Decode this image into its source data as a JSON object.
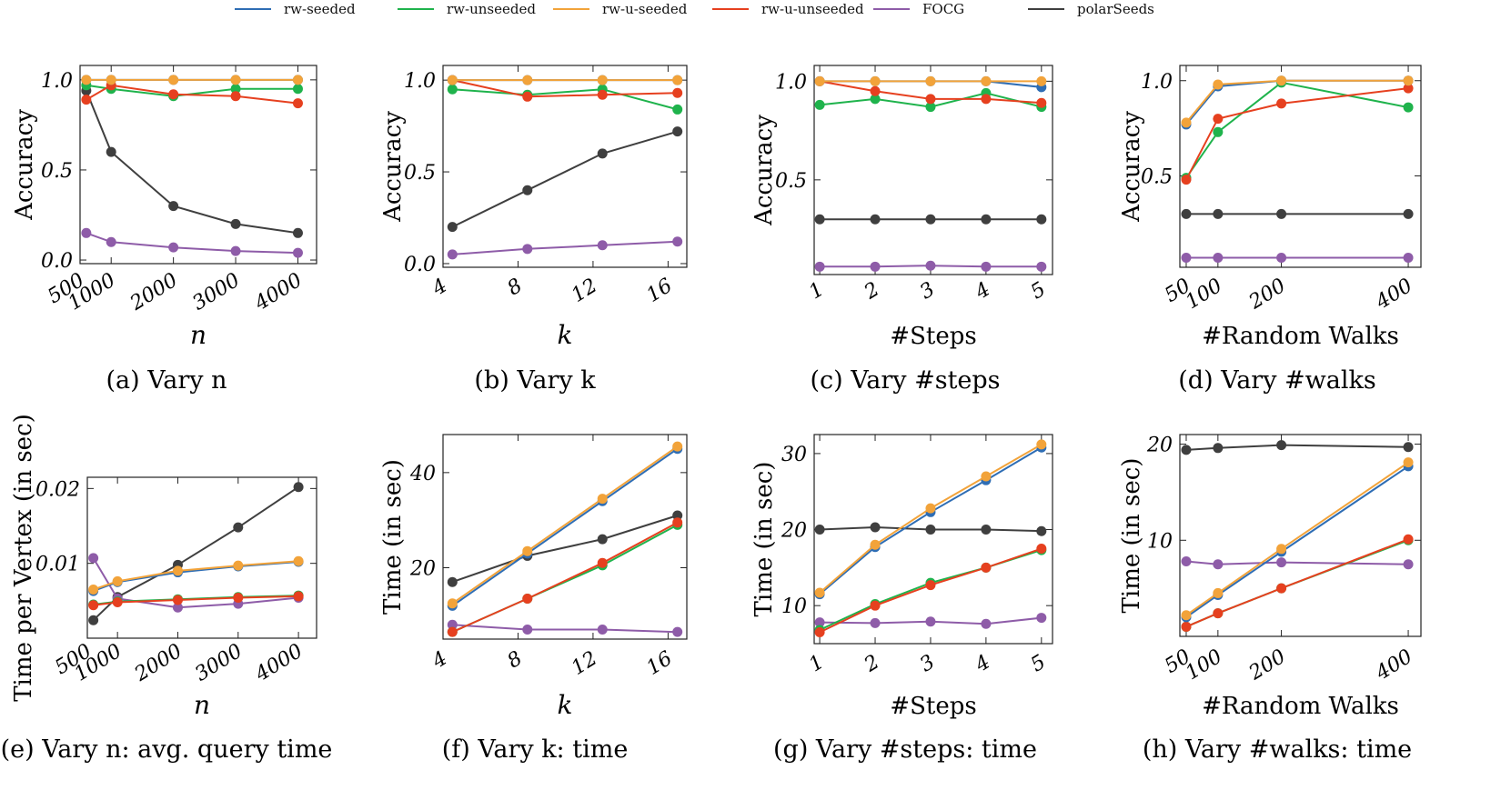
{
  "legend": [
    {
      "name": "rw-seeded",
      "color": "#2e6db4"
    },
    {
      "name": "rw-unseeded",
      "color": "#1fb34c"
    },
    {
      "name": "rw-u-seeded",
      "color": "#f2a33a"
    },
    {
      "name": "rw-u-unseeded",
      "color": "#e6401f"
    },
    {
      "name": "FOCG",
      "color": "#8e5ca8"
    },
    {
      "name": "polarSeeds",
      "color": "#3f3f3f"
    }
  ],
  "chart_data": [
    {
      "id": "a",
      "type": "line",
      "caption": "(a) Vary n",
      "xlabel": "n",
      "ylabel": "Accuracy",
      "xlim": [
        500,
        4300
      ],
      "ylim": [
        -0.02,
        1.08
      ],
      "xticks": [
        500,
        1000,
        2000,
        3000,
        4000
      ],
      "xtick_labels": [
        "500",
        "1000",
        "2000",
        "3000",
        "4000"
      ],
      "yticks": [
        0.0,
        0.5,
        1.0
      ],
      "ytick_labels": [
        "0.0",
        "0.5",
        "1.0"
      ],
      "x": [
        600,
        1000,
        2000,
        3000,
        4000
      ],
      "series": [
        {
          "name": "rw-seeded",
          "values": [
            1.0,
            1.0,
            1.0,
            1.0,
            1.0
          ]
        },
        {
          "name": "rw-unseeded",
          "values": [
            0.97,
            0.95,
            0.91,
            0.95,
            0.95
          ]
        },
        {
          "name": "rw-u-seeded",
          "values": [
            1.0,
            1.0,
            1.0,
            1.0,
            1.0
          ]
        },
        {
          "name": "rw-u-unseeded",
          "values": [
            0.89,
            0.97,
            0.92,
            0.91,
            0.87
          ]
        },
        {
          "name": "FOCG",
          "values": [
            0.15,
            0.1,
            0.07,
            0.05,
            0.04
          ]
        },
        {
          "name": "polarSeeds",
          "values": [
            0.94,
            0.6,
            0.3,
            0.2,
            0.15
          ]
        }
      ]
    },
    {
      "id": "b",
      "type": "line",
      "caption": "(b) Vary k",
      "xlabel": "k",
      "ylabel": "Accuracy",
      "xlim": [
        4,
        17
      ],
      "ylim": [
        -0.02,
        1.08
      ],
      "xticks": [
        4,
        8,
        12,
        16
      ],
      "xtick_labels": [
        "4",
        "8",
        "12",
        "16"
      ],
      "yticks": [
        0.0,
        0.5,
        1.0
      ],
      "ytick_labels": [
        "0.0",
        "0.5",
        "1.0"
      ],
      "x": [
        4.5,
        8.5,
        12.5,
        16.5
      ],
      "series": [
        {
          "name": "rw-seeded",
          "values": [
            1.0,
            1.0,
            1.0,
            1.0
          ]
        },
        {
          "name": "rw-unseeded",
          "values": [
            0.95,
            0.92,
            0.95,
            0.84
          ]
        },
        {
          "name": "rw-u-seeded",
          "values": [
            1.0,
            1.0,
            1.0,
            1.0
          ]
        },
        {
          "name": "rw-u-unseeded",
          "values": [
            1.0,
            0.91,
            0.92,
            0.93
          ]
        },
        {
          "name": "FOCG",
          "values": [
            0.05,
            0.08,
            0.1,
            0.12
          ]
        },
        {
          "name": "polarSeeds",
          "values": [
            0.2,
            0.4,
            0.6,
            0.72
          ]
        }
      ]
    },
    {
      "id": "c",
      "type": "line",
      "caption": "(c) Vary #steps",
      "xlabel": "#Steps",
      "ylabel": "Accuracy",
      "xlim": [
        0.9,
        5.2
      ],
      "ylim": [
        0.02,
        1.08
      ],
      "xticks": [
        1,
        2,
        3,
        4,
        5
      ],
      "xtick_labels": [
        "1",
        "2",
        "3",
        "4",
        "5"
      ],
      "yticks": [
        0.5,
        1.0
      ],
      "ytick_labels": [
        "0.5",
        "1.0"
      ],
      "x": [
        1,
        2,
        3,
        4,
        5
      ],
      "series": [
        {
          "name": "rw-seeded",
          "values": [
            1.0,
            1.0,
            1.0,
            1.0,
            0.97
          ]
        },
        {
          "name": "rw-unseeded",
          "values": [
            0.88,
            0.91,
            0.87,
            0.94,
            0.87
          ]
        },
        {
          "name": "rw-u-seeded",
          "values": [
            1.0,
            1.0,
            1.0,
            1.0,
            1.0
          ]
        },
        {
          "name": "rw-u-unseeded",
          "values": [
            1.0,
            0.95,
            0.91,
            0.91,
            0.89
          ]
        },
        {
          "name": "FOCG",
          "values": [
            0.06,
            0.06,
            0.065,
            0.06,
            0.06
          ]
        },
        {
          "name": "polarSeeds",
          "values": [
            0.3,
            0.3,
            0.3,
            0.3,
            0.3
          ]
        }
      ]
    },
    {
      "id": "d",
      "type": "line",
      "caption": "(d) Vary #walks",
      "xlabel": "#Random Walks",
      "ylabel": "Accuracy",
      "xlim": [
        40,
        420
      ],
      "ylim": [
        0.02,
        1.08
      ],
      "xticks": [
        50,
        100,
        200,
        400
      ],
      "xtick_labels": [
        "50",
        "100",
        "200",
        "400"
      ],
      "yticks": [
        0.5,
        1.0
      ],
      "ytick_labels": [
        "0.5",
        "1.0"
      ],
      "x": [
        50,
        100,
        200,
        400
      ],
      "series": [
        {
          "name": "rw-seeded",
          "values": [
            0.77,
            0.97,
            1.0,
            1.0
          ]
        },
        {
          "name": "rw-unseeded",
          "values": [
            0.49,
            0.73,
            0.99,
            0.86
          ]
        },
        {
          "name": "rw-u-seeded",
          "values": [
            0.78,
            0.98,
            1.0,
            1.0
          ]
        },
        {
          "name": "rw-u-unseeded",
          "values": [
            0.48,
            0.8,
            0.88,
            0.96
          ]
        },
        {
          "name": "FOCG",
          "values": [
            0.07,
            0.07,
            0.07,
            0.07
          ]
        },
        {
          "name": "polarSeeds",
          "values": [
            0.3,
            0.3,
            0.3,
            0.3
          ]
        }
      ]
    },
    {
      "id": "e",
      "type": "line",
      "caption": "(e) Vary n: avg. query time",
      "xlabel": "n",
      "ylabel": "Time per Vertex (in sec)",
      "xlim": [
        500,
        4300
      ],
      "ylim": [
        0.0,
        0.0215
      ],
      "xticks": [
        500,
        1000,
        2000,
        3000,
        4000
      ],
      "xtick_labels": [
        "500",
        "1000",
        "2000",
        "3000",
        "4000"
      ],
      "yticks": [
        0.01,
        0.02
      ],
      "ytick_labels": [
        "0.01",
        "0.02"
      ],
      "x": [
        600,
        1000,
        2000,
        3000,
        4000
      ],
      "series": [
        {
          "name": "rw-seeded",
          "values": [
            0.0063,
            0.0075,
            0.0088,
            0.0096,
            0.0102
          ]
        },
        {
          "name": "rw-unseeded",
          "values": [
            0.0045,
            0.0049,
            0.0052,
            0.0055,
            0.0057
          ]
        },
        {
          "name": "rw-u-seeded",
          "values": [
            0.0065,
            0.0076,
            0.009,
            0.0097,
            0.0103
          ]
        },
        {
          "name": "rw-u-unseeded",
          "values": [
            0.0044,
            0.0048,
            0.0051,
            0.0054,
            0.0056
          ]
        },
        {
          "name": "FOCG",
          "values": [
            0.0107,
            0.0053,
            0.0041,
            0.0046,
            0.0054
          ]
        },
        {
          "name": "polarSeeds",
          "values": [
            0.0024,
            0.0055,
            0.0098,
            0.0148,
            0.0202
          ]
        }
      ]
    },
    {
      "id": "f",
      "type": "line",
      "caption": "(f) Vary k: time",
      "xlabel": "k",
      "ylabel": "Time (in sec)",
      "xlim": [
        4,
        17
      ],
      "ylim": [
        5,
        48
      ],
      "xticks": [
        4,
        8,
        12,
        16
      ],
      "xtick_labels": [
        "4",
        "8",
        "12",
        "16"
      ],
      "yticks": [
        20,
        40
      ],
      "ytick_labels": [
        "20",
        "40"
      ],
      "x": [
        4.5,
        8.5,
        12.5,
        16.5
      ],
      "series": [
        {
          "name": "rw-seeded",
          "values": [
            12,
            23,
            34,
            45
          ]
        },
        {
          "name": "rw-unseeded",
          "values": [
            6.5,
            13.5,
            20.5,
            29
          ]
        },
        {
          "name": "rw-u-seeded",
          "values": [
            12.5,
            23.5,
            34.5,
            45.5
          ]
        },
        {
          "name": "rw-u-unseeded",
          "values": [
            6.5,
            13.5,
            21,
            29.5
          ]
        },
        {
          "name": "FOCG",
          "values": [
            8,
            7,
            7,
            6.5
          ]
        },
        {
          "name": "polarSeeds",
          "values": [
            17,
            22.5,
            26,
            31
          ]
        }
      ]
    },
    {
      "id": "g",
      "type": "line",
      "caption": "(g) Vary #steps: time",
      "xlabel": "#Steps",
      "ylabel": "Time (in sec)",
      "xlim": [
        0.9,
        5.2
      ],
      "ylim": [
        5,
        32.5
      ],
      "xticks": [
        1,
        2,
        3,
        4,
        5
      ],
      "xtick_labels": [
        "1",
        "2",
        "3",
        "4",
        "5"
      ],
      "yticks": [
        10,
        20,
        30
      ],
      "ytick_labels": [
        "10",
        "20",
        "30"
      ],
      "x": [
        1,
        2,
        3,
        4,
        5
      ],
      "series": [
        {
          "name": "rw-seeded",
          "values": [
            11.5,
            17.7,
            22.3,
            26.5,
            30.8
          ]
        },
        {
          "name": "rw-unseeded",
          "values": [
            6.8,
            10.2,
            13.0,
            15.0,
            17.3
          ]
        },
        {
          "name": "rw-u-seeded",
          "values": [
            11.7,
            18.0,
            22.8,
            27.0,
            31.2
          ]
        },
        {
          "name": "rw-u-unseeded",
          "values": [
            6.5,
            10.0,
            12.7,
            15.0,
            17.5
          ]
        },
        {
          "name": "FOCG",
          "values": [
            7.8,
            7.7,
            7.9,
            7.6,
            8.4
          ]
        },
        {
          "name": "polarSeeds",
          "values": [
            20.0,
            20.3,
            20.0,
            20.0,
            19.8
          ]
        }
      ]
    },
    {
      "id": "h",
      "type": "line",
      "caption": "(h) Vary #walks: time",
      "xlabel": "#Random Walks",
      "ylabel": "Time (in sec)",
      "xlim": [
        40,
        420
      ],
      "ylim": [
        0,
        21
      ],
      "xticks": [
        50,
        100,
        200,
        400
      ],
      "xtick_labels": [
        "50",
        "100",
        "200",
        "400"
      ],
      "yticks": [
        10,
        20
      ],
      "ytick_labels": [
        "10",
        "20"
      ],
      "x": [
        50,
        100,
        200,
        400
      ],
      "series": [
        {
          "name": "rw-seeded",
          "values": [
            2.0,
            4.3,
            8.8,
            17.7
          ]
        },
        {
          "name": "rw-unseeded",
          "values": [
            1.0,
            2.4,
            5.0,
            10.0
          ]
        },
        {
          "name": "rw-u-seeded",
          "values": [
            2.2,
            4.5,
            9.1,
            18.1
          ]
        },
        {
          "name": "rw-u-unseeded",
          "values": [
            1.0,
            2.4,
            5.0,
            10.1
          ]
        },
        {
          "name": "FOCG",
          "values": [
            7.8,
            7.5,
            7.7,
            7.5
          ]
        },
        {
          "name": "polarSeeds",
          "values": [
            19.4,
            19.6,
            19.9,
            19.7
          ]
        }
      ]
    }
  ]
}
